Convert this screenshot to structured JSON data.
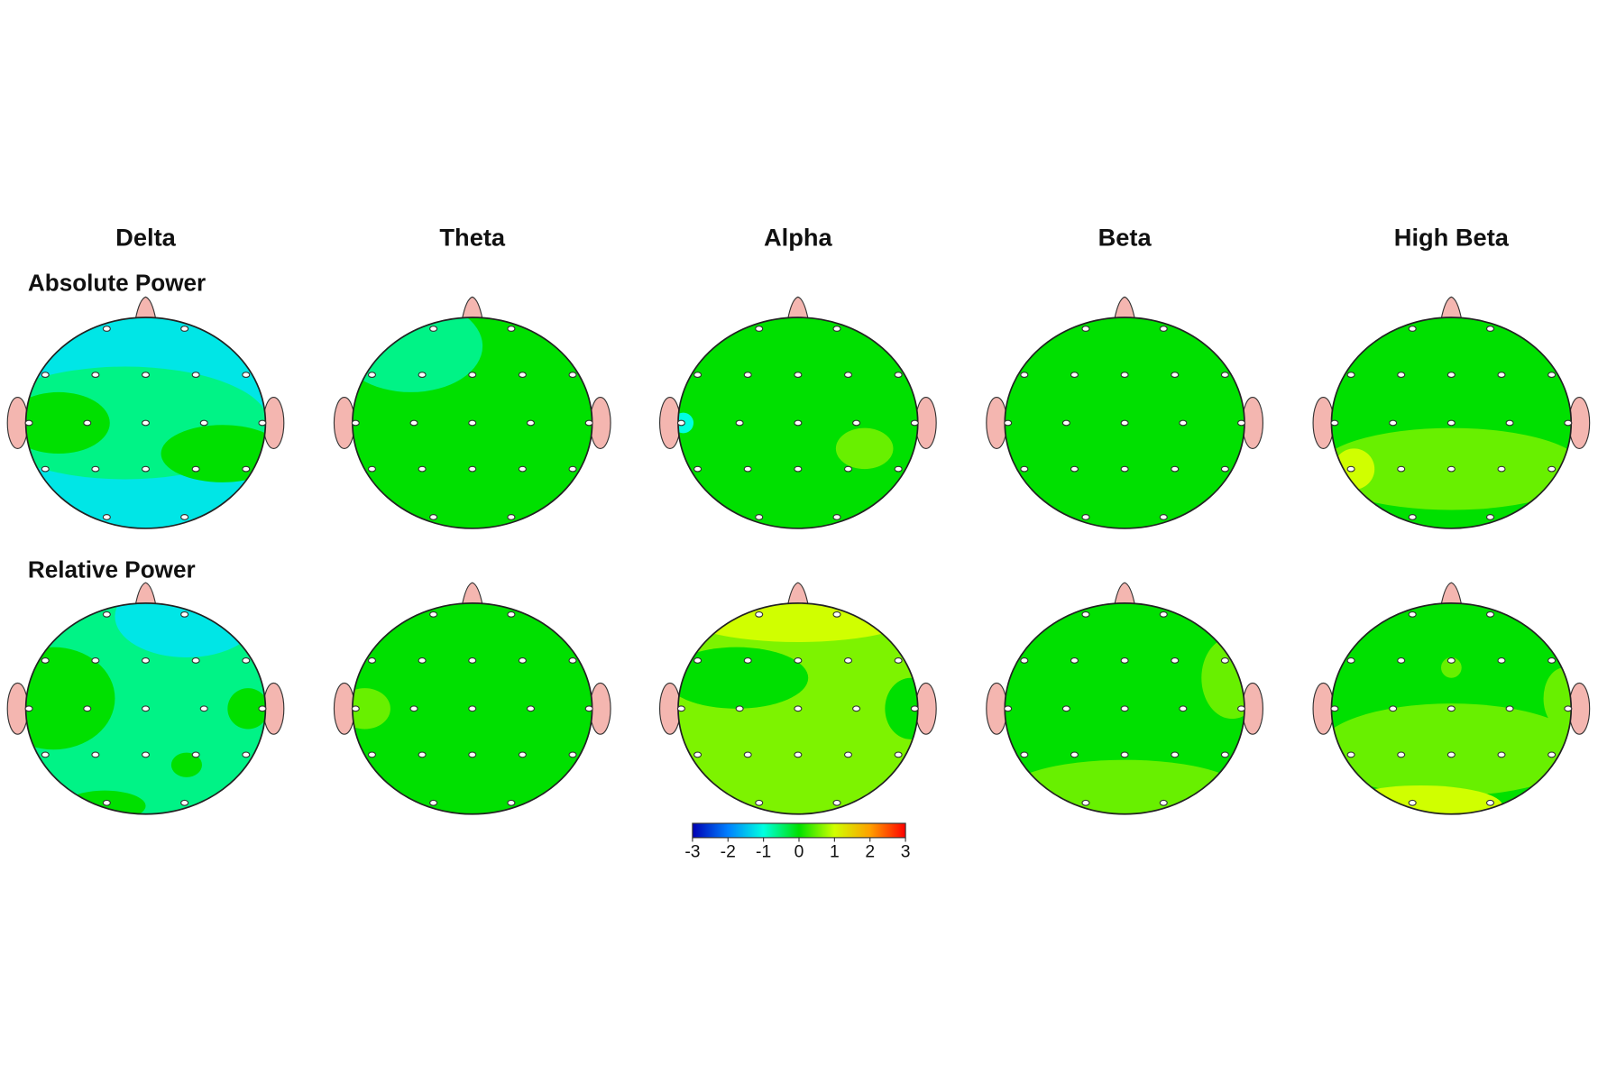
{
  "chart_data": {
    "type": "topomap",
    "bands": [
      "Delta",
      "Theta",
      "Alpha",
      "Beta",
      "High Beta"
    ],
    "rows": [
      {
        "label": "Absolute Power",
        "base": [
          -1.2,
          0,
          0,
          0,
          0
        ],
        "patches": [
          [
            -0.6,
            0,
            0
          ],
          [
            -0.6
          ],
          [
            -1.0,
            0.5
          ],
          [],
          [
            0.5,
            1.0
          ]
        ]
      },
      {
        "label": "Relative Power",
        "base": [
          -0.6,
          0,
          0.6,
          0,
          0
        ],
        "patches": [
          [
            0,
            -1.2,
            0,
            0,
            0
          ],
          [
            0.5
          ],
          [
            1.0,
            0,
            0
          ],
          [
            0.5,
            0.5
          ],
          [
            0.5,
            1.0,
            0.5,
            0.5
          ]
        ]
      }
    ],
    "colorbar": {
      "lim": [
        -3,
        3
      ],
      "ticks": [
        -3,
        -2,
        -1,
        0,
        1,
        2,
        3
      ],
      "colors": [
        "#0000b4",
        "#0080ff",
        "#00ffe0",
        "#00e000",
        "#d0ff00",
        "#ffa000",
        "#ff0000"
      ]
    }
  }
}
